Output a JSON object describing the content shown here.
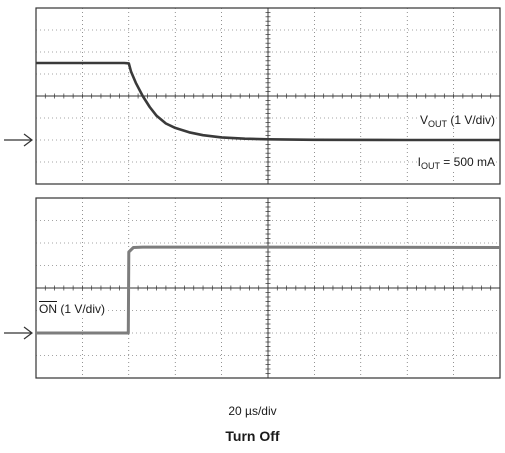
{
  "chart_data": [
    {
      "type": "line",
      "panel": "top",
      "grid": true,
      "divisions": {
        "x": 10,
        "y": 8
      },
      "series": [
        {
          "values": [
            [
              0,
              3.5
            ],
            [
              1.9,
              3.5
            ],
            [
              2.0,
              3.48
            ],
            [
              2.05,
              3.1
            ],
            [
              2.15,
              2.6
            ],
            [
              2.3,
              2.0
            ],
            [
              2.45,
              1.5
            ],
            [
              2.6,
              1.1
            ],
            [
              2.8,
              0.75
            ],
            [
              3.0,
              0.55
            ],
            [
              3.3,
              0.35
            ],
            [
              3.6,
              0.22
            ],
            [
              4.0,
              0.12
            ],
            [
              4.5,
              0.06
            ],
            [
              5.0,
              0.03
            ],
            [
              6.0,
              0.01
            ],
            [
              8.0,
              0.0
            ],
            [
              10,
              0.0
            ]
          ]
        }
      ],
      "reference_y": 0,
      "annotations": {
        "vout_main": "V",
        "vout_sub": "OUT",
        "vout_rest": " (1 V/div)",
        "iout_main": "I",
        "iout_sub": "OUT",
        "iout_rest": " = 500 mA"
      }
    },
    {
      "type": "line",
      "panel": "bottom",
      "grid": true,
      "divisions": {
        "x": 10,
        "y": 8
      },
      "series": [
        {
          "values": [
            [
              0,
              0.0
            ],
            [
              1.99,
              0.0
            ],
            [
              2.0,
              3.6
            ],
            [
              2.1,
              3.8
            ],
            [
              2.3,
              3.82
            ],
            [
              5.0,
              3.82
            ],
            [
              10,
              3.8
            ]
          ]
        }
      ],
      "reference_y": 0,
      "annotations": {
        "on_main": "ON",
        "on_rest": " (1 V/div)"
      }
    }
  ],
  "timebase": "20  µs/div",
  "title": "Turn Off",
  "colors": {
    "vout": "#3a3a3a",
    "on": "#7d7d7d",
    "grid": "#4a4a4a",
    "frame": "#333333"
  }
}
